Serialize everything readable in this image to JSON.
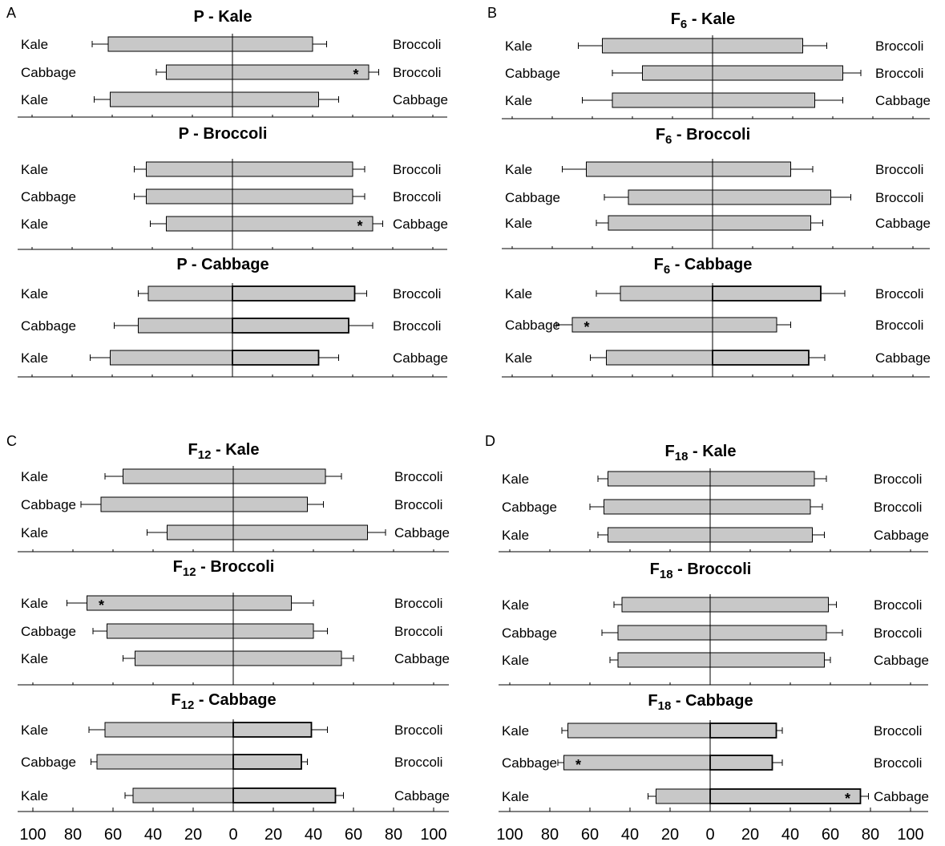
{
  "chart_data": {
    "type": "bar",
    "orientation": "horizontal-diverging",
    "x_tick_labels": [
      "100",
      "80",
      "60",
      "40",
      "20",
      "0",
      "20",
      "40",
      "60",
      "80",
      "100"
    ],
    "xlim": [
      -100,
      100
    ],
    "panels": [
      {
        "letter": "A",
        "subcharts": [
          {
            "title_main": "P",
            "title_sub": "",
            "title_rest": " - Kale",
            "rows": [
              {
                "left_label": "Kale",
                "right_label": "Broccoli",
                "left_value": 62,
                "left_error": 8,
                "right_value": 40,
                "right_error": 7,
                "significant": ""
              },
              {
                "left_label": "Cabbage",
                "right_label": "Broccoli",
                "left_value": 33,
                "left_error": 5,
                "right_value": 68,
                "right_error": 5,
                "significant": "right"
              },
              {
                "left_label": "Kale",
                "right_label": "Cabbage",
                "left_value": 61,
                "left_error": 8,
                "right_value": 43,
                "right_error": 10,
                "significant": ""
              }
            ]
          },
          {
            "title_main": "P",
            "title_sub": "",
            "title_rest": " - Broccoli",
            "rows": [
              {
                "left_label": "Kale",
                "right_label": "Broccoli",
                "left_value": 43,
                "left_error": 6,
                "right_value": 60,
                "right_error": 6,
                "significant": ""
              },
              {
                "left_label": "Cabbage",
                "right_label": "Broccoli",
                "left_value": 43,
                "left_error": 6,
                "right_value": 60,
                "right_error": 6,
                "significant": ""
              },
              {
                "left_label": "Kale",
                "right_label": "Cabbage",
                "left_value": 33,
                "left_error": 8,
                "right_value": 70,
                "right_error": 5,
                "significant": "right"
              }
            ]
          },
          {
            "title_main": "P",
            "title_sub": "",
            "title_rest": " - Cabbage",
            "rows": [
              {
                "left_label": "Kale",
                "right_label": "Broccoli",
                "left_value": 42,
                "left_error": 5,
                "right_value": 61,
                "right_error": 6,
                "significant": ""
              },
              {
                "left_label": "Cabbage",
                "right_label": "Broccoli",
                "left_value": 47,
                "left_error": 12,
                "right_value": 58,
                "right_error": 12,
                "significant": ""
              },
              {
                "left_label": "Kale",
                "right_label": "Cabbage",
                "left_value": 61,
                "left_error": 10,
                "right_value": 43,
                "right_error": 10,
                "significant": ""
              }
            ]
          }
        ]
      },
      {
        "letter": "B",
        "subcharts": [
          {
            "title_main": "F",
            "title_sub": "6",
            "title_rest": " - Kale",
            "rows": [
              {
                "left_label": "Kale",
                "right_label": "Broccoli",
                "left_value": 55,
                "left_error": 12,
                "right_value": 45,
                "right_error": 12,
                "significant": ""
              },
              {
                "left_label": "Cabbage",
                "right_label": "Broccoli",
                "left_value": 35,
                "left_error": 15,
                "right_value": 65,
                "right_error": 9,
                "significant": ""
              },
              {
                "left_label": "Kale",
                "right_label": "Cabbage",
                "left_value": 50,
                "left_error": 15,
                "right_value": 51,
                "right_error": 14,
                "significant": ""
              }
            ]
          },
          {
            "title_main": "F",
            "title_sub": "6",
            "title_rest": " - Broccoli",
            "rows": [
              {
                "left_label": "Kale",
                "right_label": "Broccoli",
                "left_value": 63,
                "left_error": 12,
                "right_value": 39,
                "right_error": 11,
                "significant": ""
              },
              {
                "left_label": "Cabbage",
                "right_label": "Broccoli",
                "left_value": 42,
                "left_error": 12,
                "right_value": 59,
                "right_error": 10,
                "significant": ""
              },
              {
                "left_label": "Kale",
                "right_label": "Cabbage",
                "left_value": 52,
                "left_error": 6,
                "right_value": 49,
                "right_error": 6,
                "significant": ""
              }
            ]
          },
          {
            "title_main": "F",
            "title_sub": "6",
            "title_rest": " - Cabbage",
            "rows": [
              {
                "left_label": "Kale",
                "right_label": "Broccoli",
                "left_value": 46,
                "left_error": 12,
                "right_value": 54,
                "right_error": 12,
                "significant": ""
              },
              {
                "left_label": "Cabbage",
                "right_label": "Broccoli",
                "left_value": 70,
                "left_error": 8,
                "right_value": 32,
                "right_error": 7,
                "significant": "left"
              },
              {
                "left_label": "Kale",
                "right_label": "Cabbage",
                "left_value": 53,
                "left_error": 8,
                "right_value": 48,
                "right_error": 8,
                "significant": ""
              }
            ]
          }
        ]
      },
      {
        "letter": "C",
        "subcharts": [
          {
            "title_main": "F",
            "title_sub": "12",
            "title_rest": " - Kale",
            "rows": [
              {
                "left_label": "Kale",
                "right_label": "Broccoli",
                "left_value": 55,
                "left_error": 9,
                "right_value": 46,
                "right_error": 8,
                "significant": ""
              },
              {
                "left_label": "Cabbage",
                "right_label": "Broccoli",
                "left_value": 66,
                "left_error": 10,
                "right_value": 37,
                "right_error": 8,
                "significant": ""
              },
              {
                "left_label": "Kale",
                "right_label": "Cabbage",
                "left_value": 33,
                "left_error": 10,
                "right_value": 67,
                "right_error": 9,
                "significant": ""
              }
            ]
          },
          {
            "title_main": "F",
            "title_sub": "12",
            "title_rest": " - Broccoli",
            "rows": [
              {
                "left_label": "Kale",
                "right_label": "Broccoli",
                "left_value": 73,
                "left_error": 10,
                "right_value": 29,
                "right_error": 11,
                "significant": "left"
              },
              {
                "left_label": "Cabbage",
                "right_label": "Broccoli",
                "left_value": 63,
                "left_error": 7,
                "right_value": 40,
                "right_error": 7,
                "significant": ""
              },
              {
                "left_label": "Kale",
                "right_label": "Cabbage",
                "left_value": 49,
                "left_error": 6,
                "right_value": 54,
                "right_error": 6,
                "significant": ""
              }
            ]
          },
          {
            "title_main": "F",
            "title_sub": "12",
            "title_rest": " - Cabbage",
            "rows": [
              {
                "left_label": "Kale",
                "right_label": "Broccoli",
                "left_value": 64,
                "left_error": 8,
                "right_value": 39,
                "right_error": 8,
                "significant": ""
              },
              {
                "left_label": "Cabbage",
                "right_label": "Broccoli",
                "left_value": 68,
                "left_error": 3,
                "right_value": 34,
                "right_error": 3,
                "significant": ""
              },
              {
                "left_label": "Kale",
                "right_label": "Cabbage",
                "left_value": 50,
                "left_error": 4,
                "right_value": 51,
                "right_error": 4,
                "significant": ""
              }
            ]
          }
        ]
      },
      {
        "letter": "D",
        "subcharts": [
          {
            "title_main": "F",
            "title_sub": "18",
            "title_rest": " - Kale",
            "rows": [
              {
                "left_label": "Kale",
                "right_label": "Broccoli",
                "left_value": 51,
                "left_error": 5,
                "right_value": 52,
                "right_error": 6,
                "significant": ""
              },
              {
                "left_label": "Cabbage",
                "right_label": "Broccoli",
                "left_value": 53,
                "left_error": 7,
                "right_value": 50,
                "right_error": 6,
                "significant": ""
              },
              {
                "left_label": "Kale",
                "right_label": "Cabbage",
                "left_value": 51,
                "left_error": 5,
                "right_value": 51,
                "right_error": 6,
                "significant": ""
              }
            ]
          },
          {
            "title_main": "F",
            "title_sub": "18",
            "title_rest": " - Broccoli",
            "rows": [
              {
                "left_label": "Kale",
                "right_label": "Broccoli",
                "left_value": 44,
                "left_error": 4,
                "right_value": 59,
                "right_error": 4,
                "significant": ""
              },
              {
                "left_label": "Cabbage",
                "right_label": "Broccoli",
                "left_value": 46,
                "left_error": 8,
                "right_value": 58,
                "right_error": 8,
                "significant": ""
              },
              {
                "left_label": "Kale",
                "right_label": "Cabbage",
                "left_value": 46,
                "left_error": 4,
                "right_value": 57,
                "right_error": 3,
                "significant": ""
              }
            ]
          },
          {
            "title_main": "F",
            "title_sub": "18",
            "title_rest": " - Cabbage",
            "rows": [
              {
                "left_label": "Kale",
                "right_label": "Broccoli",
                "left_value": 71,
                "left_error": 3,
                "right_value": 33,
                "right_error": 3,
                "significant": ""
              },
              {
                "left_label": "Cabbage",
                "right_label": "Broccoli",
                "left_value": 73,
                "left_error": 3,
                "right_value": 31,
                "right_error": 5,
                "significant": "left"
              },
              {
                "left_label": "Kale",
                "right_label": "Cabbage",
                "left_value": 27,
                "left_error": 4,
                "right_value": 75,
                "right_error": 4,
                "significant": "right"
              }
            ]
          }
        ]
      }
    ],
    "significance_marker": "*",
    "grid": false,
    "legend": "none"
  },
  "colors": {
    "bar_fill": "#c8c8c8",
    "bar_stroke": "#000000",
    "axis": "#000000"
  }
}
